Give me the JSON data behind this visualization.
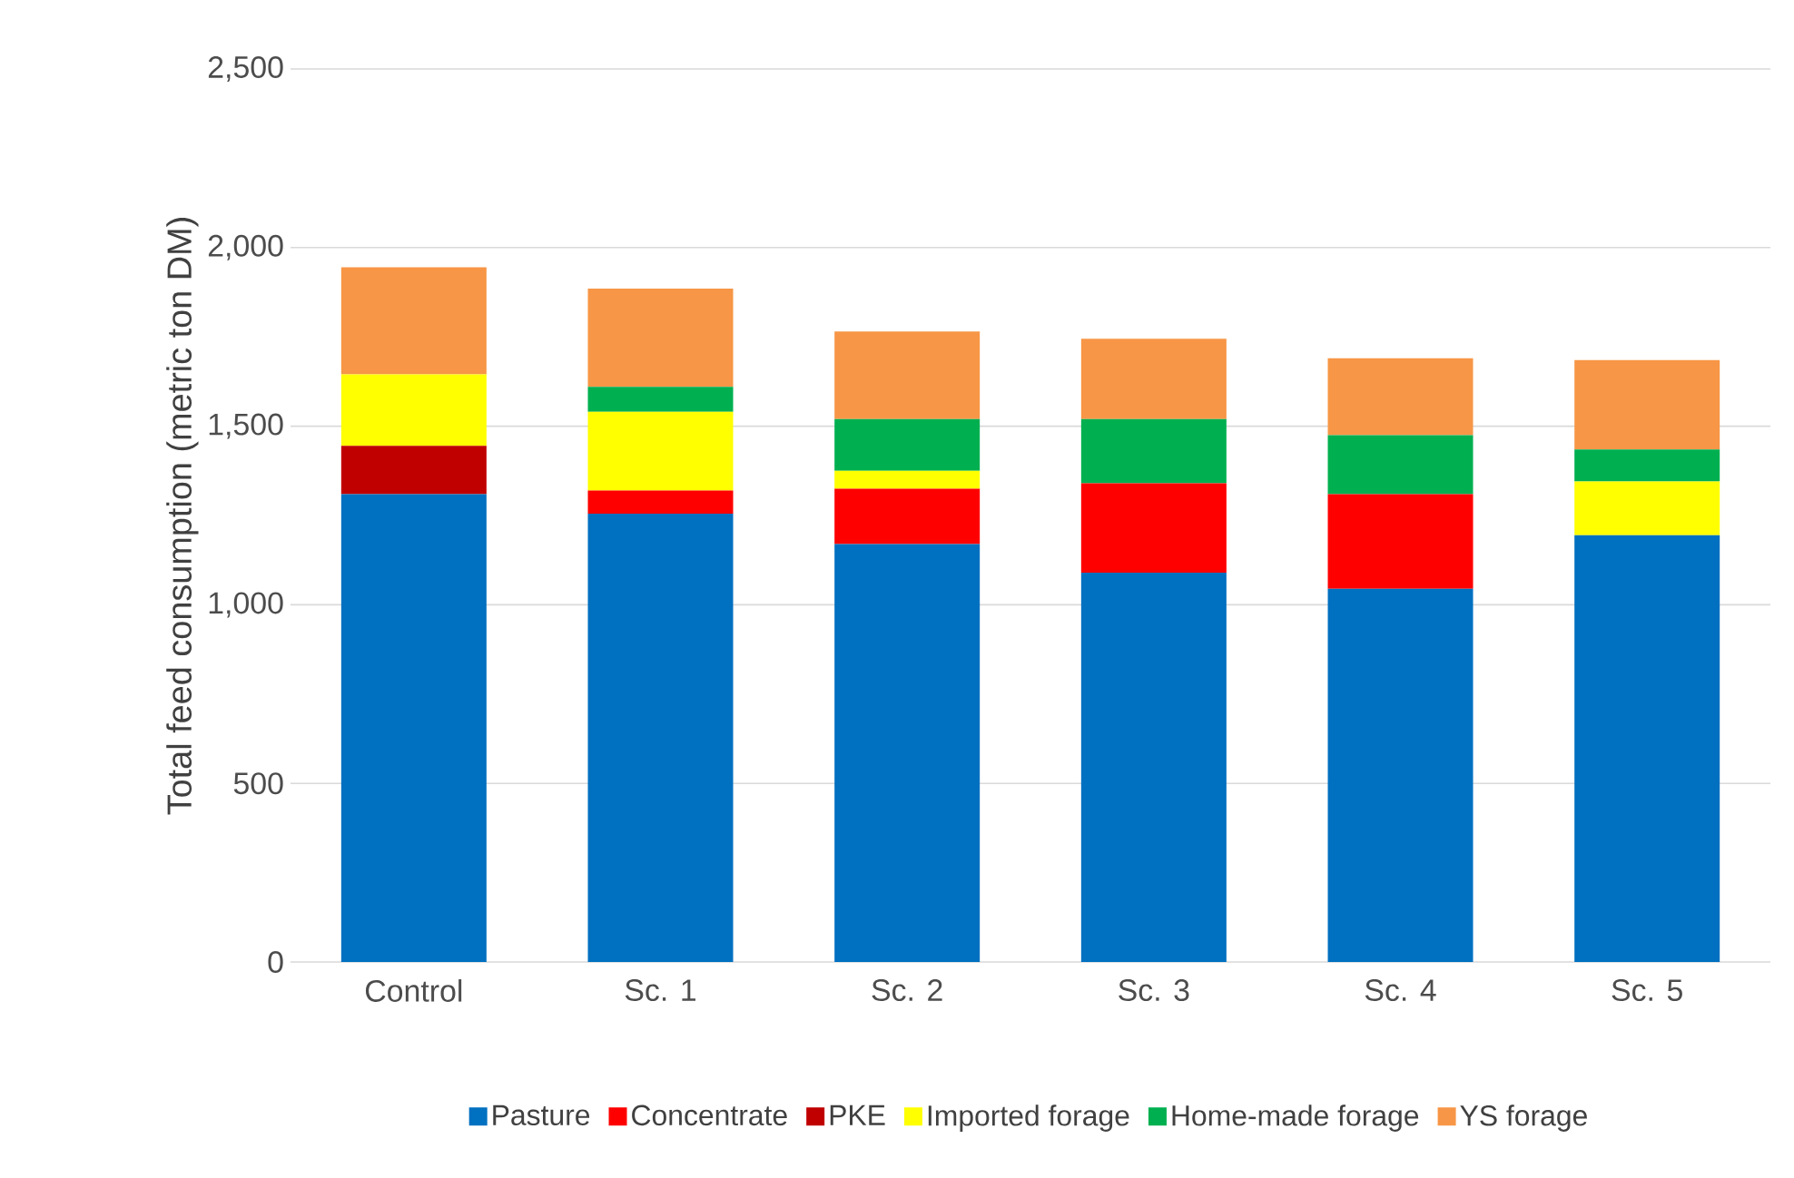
{
  "chart_data": {
    "type": "bar",
    "stacked": true,
    "ylabel": "Total feed consumption  (metric ton DM)",
    "categories": [
      "Control",
      "Sc. 1",
      "Sc. 2",
      "Sc. 3",
      "Sc. 4",
      "Sc. 5"
    ],
    "series": [
      {
        "name": "Pasture",
        "color": "#0070c0",
        "values": [
          1310,
          1255,
          1170,
          1090,
          1045,
          1195
        ]
      },
      {
        "name": "Concentrate",
        "color": "#ff0000",
        "values": [
          0,
          65,
          155,
          250,
          265,
          0
        ]
      },
      {
        "name": "PKE",
        "color": "#c00000",
        "values": [
          135,
          0,
          0,
          0,
          0,
          0
        ]
      },
      {
        "name": "Imported forage",
        "color": "#ffff00",
        "values": [
          200,
          220,
          50,
          0,
          0,
          150
        ]
      },
      {
        "name": "Home-made forage",
        "color": "#00b050",
        "values": [
          0,
          70,
          145,
          180,
          165,
          90
        ]
      },
      {
        "name": "YS forage",
        "color": "#f79646",
        "values": [
          300,
          275,
          245,
          225,
          215,
          250
        ]
      }
    ],
    "ylim": [
      0,
      2500
    ],
    "yticks": [
      0,
      500,
      {
        "value": 1000,
        "label": "1,000"
      },
      {
        "value": 1500,
        "label": "1,500"
      },
      {
        "value": 2000,
        "label": "2,000"
      },
      {
        "value": 2500,
        "label": "2,500"
      }
    ],
    "grid": "y",
    "legend": "bottom"
  }
}
